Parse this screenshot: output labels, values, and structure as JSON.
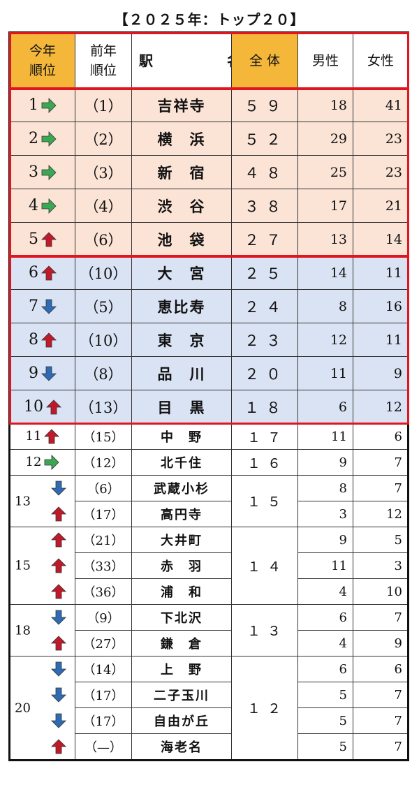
{
  "title": "【２０２５年：トップ２０】",
  "headers": {
    "rank_this": [
      "今年",
      "順位"
    ],
    "rank_prev": [
      "前年",
      "順位"
    ],
    "station": "駅　　名",
    "total": "全 体",
    "male": "男性",
    "female": "女性"
  },
  "colors": {
    "header_highlight": "#f4b73a",
    "pink_band": "#fbe3d6",
    "blue_band": "#dae3f3",
    "red_border": "#e0151f",
    "arrow_up": "#c0192a",
    "arrow_down": "#2e6bb5",
    "arrow_same": "#3aa853"
  },
  "top_rows": [
    {
      "rank": "1",
      "trend": "same",
      "prev": "（1）",
      "station": "吉祥寺",
      "total": "５９",
      "male": "18",
      "female": "41"
    },
    {
      "rank": "2",
      "trend": "same",
      "prev": "（2）",
      "station": "横　浜",
      "total": "５２",
      "male": "29",
      "female": "23"
    },
    {
      "rank": "3",
      "trend": "same",
      "prev": "（3）",
      "station": "新　宿",
      "total": "４８",
      "male": "25",
      "female": "23"
    },
    {
      "rank": "4",
      "trend": "same",
      "prev": "（4）",
      "station": "渋　谷",
      "total": "３８",
      "male": "17",
      "female": "21"
    },
    {
      "rank": "5",
      "trend": "up",
      "prev": "（6）",
      "station": "池　袋",
      "total": "２７",
      "male": "13",
      "female": "14"
    },
    {
      "rank": "6",
      "trend": "up",
      "prev": "（10）",
      "station": "大　宮",
      "total": "２５",
      "male": "14",
      "female": "11"
    },
    {
      "rank": "7",
      "trend": "down",
      "prev": "（5）",
      "station": "恵比寿",
      "total": "２４",
      "male": "8",
      "female": "16"
    },
    {
      "rank": "8",
      "trend": "up",
      "prev": "（10）",
      "station": "東　京",
      "total": "２３",
      "male": "12",
      "female": "11"
    },
    {
      "rank": "9",
      "trend": "down",
      "prev": "（8）",
      "station": "品　川",
      "total": "２０",
      "male": "11",
      "female": "9"
    },
    {
      "rank": "10",
      "trend": "up",
      "prev": "（13）",
      "station": "目　黒",
      "total": "１８",
      "male": "6",
      "female": "12"
    }
  ],
  "rest_groups": [
    {
      "rank": "11",
      "total": "１７",
      "rows": [
        {
          "trend": "up",
          "prev": "（15）",
          "station": "中　野",
          "male": "11",
          "female": "6"
        }
      ]
    },
    {
      "rank": "12",
      "total": "１６",
      "rows": [
        {
          "trend": "same",
          "prev": "（12）",
          "station": "北千住",
          "male": "9",
          "female": "7"
        }
      ]
    },
    {
      "rank": "13",
      "total": "１５",
      "rows": [
        {
          "trend": "down",
          "prev": "（6）",
          "station": "武蔵小杉",
          "male": "8",
          "female": "7"
        },
        {
          "trend": "up",
          "prev": "（17）",
          "station": "高円寺",
          "male": "3",
          "female": "12"
        }
      ]
    },
    {
      "rank": "15",
      "total": "１４",
      "rows": [
        {
          "trend": "up",
          "prev": "（21）",
          "station": "大井町",
          "male": "9",
          "female": "5"
        },
        {
          "trend": "up",
          "prev": "（33）",
          "station": "赤　羽",
          "male": "11",
          "female": "3"
        },
        {
          "trend": "up",
          "prev": "（36）",
          "station": "浦　和",
          "male": "4",
          "female": "10"
        }
      ]
    },
    {
      "rank": "18",
      "total": "１３",
      "rows": [
        {
          "trend": "down",
          "prev": "（9）",
          "station": "下北沢",
          "male": "6",
          "female": "7"
        },
        {
          "trend": "up",
          "prev": "（27）",
          "station": "鎌　倉",
          "male": "4",
          "female": "9"
        }
      ]
    },
    {
      "rank": "20",
      "total": "１２",
      "rows": [
        {
          "trend": "down",
          "prev": "（14）",
          "station": "上　野",
          "male": "6",
          "female": "6"
        },
        {
          "trend": "down",
          "prev": "（17）",
          "station": "二子玉川",
          "male": "5",
          "female": "7"
        },
        {
          "trend": "down",
          "prev": "（17）",
          "station": "自由が丘",
          "male": "5",
          "female": "7"
        },
        {
          "trend": "up",
          "prev": "（—）",
          "station": "海老名",
          "male": "5",
          "female": "7"
        }
      ]
    }
  ]
}
